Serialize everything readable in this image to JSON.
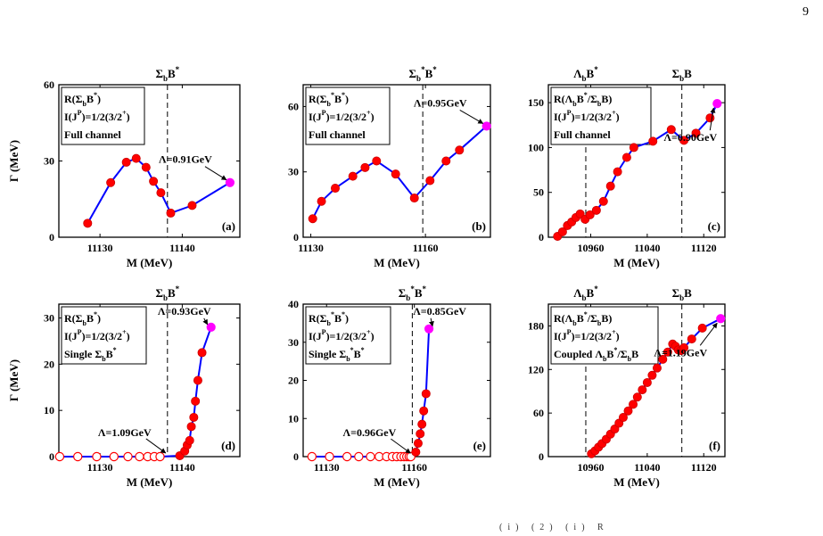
{
  "page_number": "9",
  "footer_fragment": "(i) (2) (i) R",
  "colors": {
    "line": "#0000ff",
    "point": "#ff0000",
    "point_edge": "#cc0000",
    "endpoint": "#ff00ff",
    "dashed": "#000000"
  },
  "chart_data": [
    {
      "id": "a",
      "type": "line",
      "panel_label": "(a)",
      "xlabel": "M (MeV)",
      "ylabel": "Γ (MeV)",
      "xlim": [
        11125,
        11147
      ],
      "ylim": [
        0,
        60
      ],
      "xticks": [
        11130,
        11140
      ],
      "yticks": [
        0,
        30,
        60
      ],
      "legend": [
        "R(Σ_bB^*)",
        "I(J^P)=1/2(3/2^+)",
        "Full channel"
      ],
      "thresholds": [
        {
          "x": 11138.2,
          "label": "Σ_bB^*"
        }
      ],
      "x": [
        11128.5,
        11131.3,
        11133.2,
        11134.4,
        11135.6,
        11136.5,
        11137.4,
        11138.6,
        11141.2,
        11145.8
      ],
      "y": [
        5.5,
        21.5,
        29.5,
        31,
        27.5,
        22,
        17.5,
        9.5,
        12.5,
        21.5
      ],
      "open_points": [],
      "endpoint": {
        "x": 11145.8,
        "y": 21.5,
        "text": "Λ=0.91GeV"
      }
    },
    {
      "id": "b",
      "type": "line",
      "panel_label": "(b)",
      "xlabel": "M (MeV)",
      "ylabel": "",
      "xlim": [
        11128,
        11177
      ],
      "ylim": [
        0,
        70
      ],
      "xticks": [
        11130,
        11160
      ],
      "yticks": [
        0,
        30,
        60
      ],
      "legend": [
        "R(Σ_b^*B^*)",
        "I(J^P)=1/2(3/2^+)",
        "Full channel"
      ],
      "thresholds": [
        {
          "x": 11159.3,
          "label": "Σ_b^*B^*"
        }
      ],
      "x": [
        11130.5,
        11132.8,
        11136.4,
        11141,
        11144.2,
        11147.2,
        11152.2,
        11157.1,
        11161.2,
        11165.4,
        11168.9,
        11176
      ],
      "y": [
        8.5,
        16.5,
        22.5,
        28,
        32,
        35,
        29,
        18,
        26,
        35,
        40,
        51
      ],
      "open_points": [],
      "endpoint": {
        "x": 11176,
        "y": 51,
        "text": "Λ=0.95GeV"
      }
    },
    {
      "id": "c",
      "type": "line",
      "panel_label": "(c)",
      "xlabel": "M (MeV)",
      "ylabel": "",
      "xlim": [
        10900,
        11150
      ],
      "ylim": [
        0,
        170
      ],
      "xticks": [
        10960,
        11040,
        11120
      ],
      "yticks": [
        0,
        50,
        100,
        150
      ],
      "legend": [
        "R(Λ_bB^*/Σ_bB)",
        "I(J^P)=1/2(3/2^+)",
        "Full channel"
      ],
      "thresholds": [
        {
          "x": 10953,
          "label": "Λ_bB^*"
        },
        {
          "x": 11089,
          "label": "Σ_bB"
        }
      ],
      "x": [
        10913,
        10920,
        10927,
        10933,
        10939,
        10945,
        10952,
        10959,
        10968,
        10978,
        10988,
        10998,
        11011,
        11021,
        11048,
        11074,
        11092,
        11109,
        11129,
        11139
      ],
      "y": [
        1,
        6,
        13,
        17,
        22,
        26,
        20,
        25,
        30,
        40,
        57,
        73,
        89,
        100,
        107,
        120,
        108,
        116,
        133,
        149
      ],
      "open_points": [],
      "endpoint": {
        "x": 11139,
        "y": 149,
        "text": "Λ=0.90GeV"
      }
    },
    {
      "id": "d",
      "type": "line",
      "panel_label": "(d)",
      "xlabel": "M (MeV)",
      "ylabel": "Γ (MeV)",
      "xlim": [
        11125,
        11147
      ],
      "ylim": [
        0,
        33
      ],
      "xticks": [
        11130,
        11140
      ],
      "yticks": [
        0,
        10,
        20,
        30
      ],
      "legend": [
        "R(Σ_bB^*)",
        "I(J^P)=1/2(3/2^+)",
        "Single Σ_bB^*"
      ],
      "thresholds": [
        {
          "x": 11138.2,
          "label": "Σ_bB^*"
        }
      ],
      "x": [
        11125.1,
        11127.3,
        11129.6,
        11131.7,
        11133.4,
        11134.8,
        11135.8,
        11136.6,
        11137.3,
        11139.7,
        11140.3,
        11140.6,
        11140.9,
        11141.1,
        11141.4,
        11141.6,
        11141.9,
        11142.4,
        11143.5
      ],
      "y": [
        0,
        0,
        0,
        0,
        0,
        0,
        0,
        0,
        0,
        0.2,
        1.2,
        2.5,
        3.5,
        6.5,
        8.5,
        12,
        16.5,
        22.5,
        28
      ],
      "open_points": [
        0,
        1,
        2,
        3,
        4,
        5,
        6,
        7,
        8
      ],
      "endpoint": {
        "x": 11143.5,
        "y": 28,
        "text": "Λ=0.93GeV"
      },
      "start_annotation": {
        "x": 11138.2,
        "y": 0.2,
        "text": "Λ=1.09GeV"
      }
    },
    {
      "id": "e",
      "type": "line",
      "panel_label": "(e)",
      "xlabel": "M (MeV)",
      "ylabel": "",
      "xlim": [
        11122,
        11186
      ],
      "ylim": [
        0,
        40
      ],
      "xticks": [
        11130,
        11160
      ],
      "yticks": [
        0,
        10,
        20,
        30,
        40
      ],
      "legend": [
        "R(Σ_b^*B^*)",
        "I(J^P)=1/2(3/2^+)",
        "Single Σ_b^*B^*"
      ],
      "thresholds": [
        {
          "x": 11159.3,
          "label": "Σ_b^*B^*"
        }
      ],
      "x": [
        11125,
        11131,
        11137,
        11141,
        11145,
        11148,
        11150.5,
        11152.5,
        11154,
        11155.4,
        11156.5,
        11157.4,
        11158.2,
        11158.8,
        11160.5,
        11161.3,
        11162,
        11162.6,
        11163.2,
        11164,
        11165
      ],
      "y": [
        0,
        0,
        0,
        0,
        0,
        0,
        0,
        0,
        0,
        0,
        0,
        0,
        0,
        0,
        1.2,
        3.5,
        6,
        8.5,
        12,
        16.5,
        33.5
      ],
      "open_points": [
        0,
        1,
        2,
        3,
        4,
        5,
        6,
        7,
        8,
        9,
        10,
        11,
        12,
        13
      ],
      "endpoint": {
        "x": 11165,
        "y": 33.5,
        "text": "Λ=0.85GeV"
      },
      "start_annotation": {
        "x": 11159.3,
        "y": 0.2,
        "text": "Λ=0.96GeV"
      }
    },
    {
      "id": "f",
      "type": "line",
      "panel_label": "(f)",
      "xlabel": "M (MeV)",
      "ylabel": "",
      "xlim": [
        10900,
        11150
      ],
      "ylim": [
        0,
        210
      ],
      "xticks": [
        10960,
        11040,
        11120
      ],
      "yticks": [
        0,
        60,
        120,
        180
      ],
      "legend": [
        "R(Λ_bB^*/Σ_bB)",
        "I(J^P)=1/2(3/2^+)",
        "Coupled Λ_bB^*/Σ_bB"
      ],
      "thresholds": [
        {
          "x": 10953,
          "label": "Λ_bB^*"
        },
        {
          "x": 11089,
          "label": "Σ_bB"
        }
      ],
      "x": [
        10961,
        10966,
        10971,
        10976,
        10982,
        10988,
        10994,
        11000,
        11006,
        11013,
        11020,
        11026,
        11033,
        11040,
        11047,
        11054,
        11062,
        11069,
        11076,
        11080,
        11084,
        11088,
        11092,
        11103,
        11118,
        11144
      ],
      "y": [
        4,
        8,
        13,
        18,
        24,
        31,
        38,
        46,
        54,
        63,
        72,
        82,
        92,
        102,
        112,
        122,
        134,
        144,
        155,
        152,
        147,
        146,
        150,
        162,
        177,
        190
      ],
      "open_points": [],
      "endpoint": {
        "x": 11144,
        "y": 190,
        "text": "Λ=1.19GeV"
      }
    }
  ]
}
